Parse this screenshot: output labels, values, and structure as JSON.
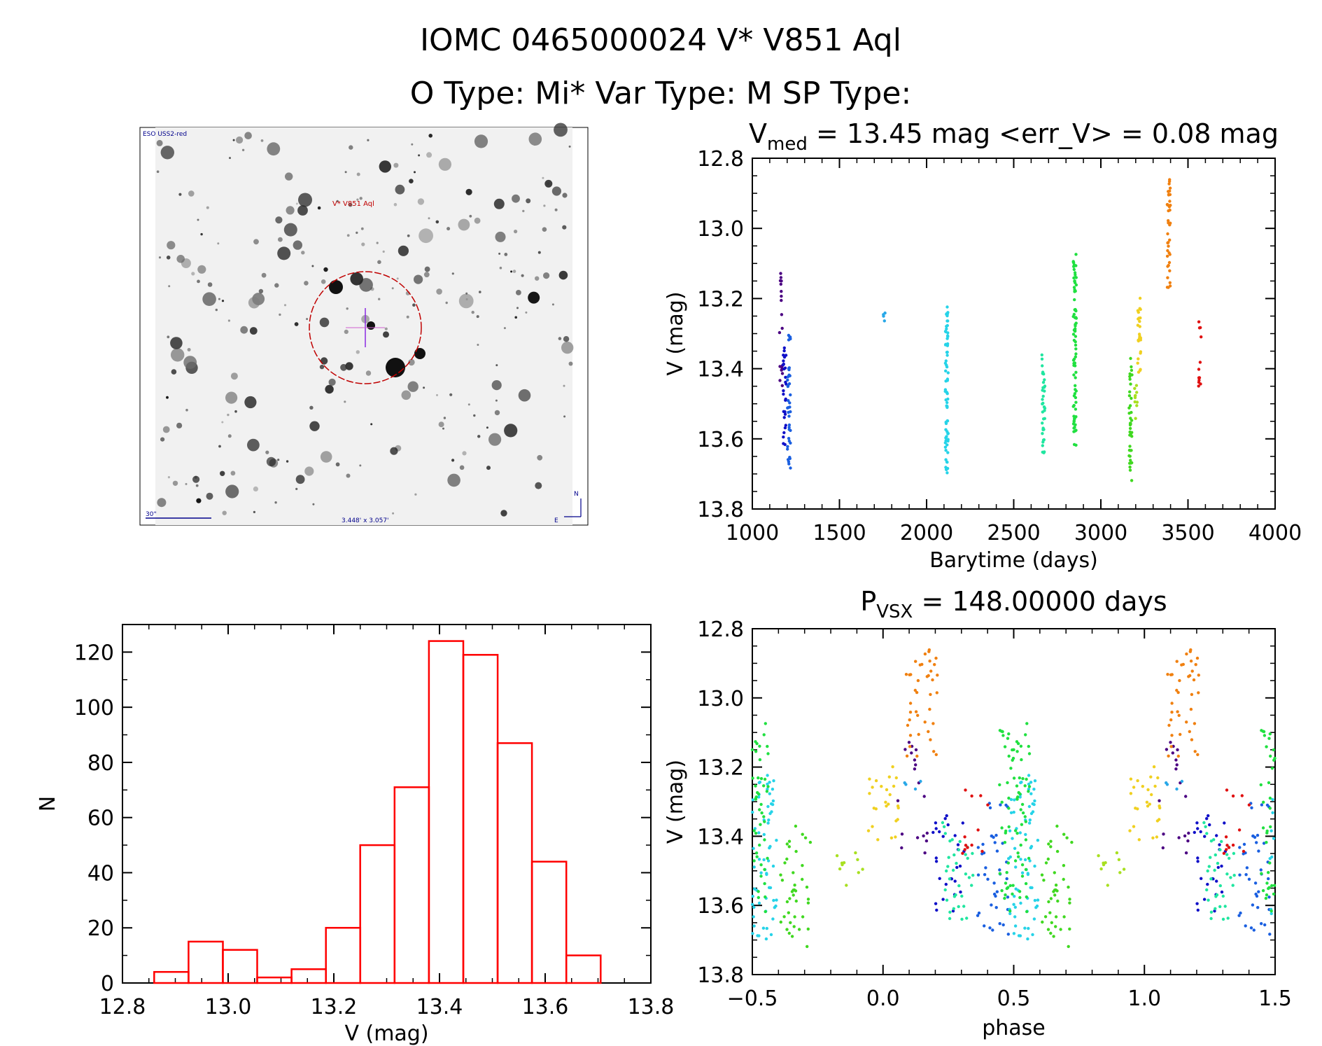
{
  "header": {
    "line1": "IOMC 0465000024    V* V851 Aql",
    "line2": "O Type: Mi*  Var Type: M  SP Type:"
  },
  "sky_image": {
    "survey_label": "ESO USS2-red",
    "object_label": "V* V851 Aql",
    "scale_label": "30\"",
    "size_label": "3.448' x 3.057'",
    "north_label": "N",
    "east_label": "E"
  },
  "chart_data": [
    {
      "id": "lightcurve",
      "type": "scatter",
      "title_main": "V",
      "title_sub": "med",
      "title_rest": " = 13.45 mag <err_V> = 0.08 mag",
      "xlabel": "Barytime (days)",
      "ylabel": "V (mag)",
      "xlim": [
        1000,
        4000
      ],
      "ylim": [
        13.8,
        12.8
      ],
      "y_inverted": true,
      "xticks": [
        "1000",
        "1500",
        "2000",
        "2500",
        "3000",
        "3500",
        "4000"
      ],
      "yticks": [
        "12.8",
        "13.0",
        "13.2",
        "13.4",
        "13.6",
        "13.8"
      ],
      "clusters": [
        {
          "x": 1165,
          "y_min": 13.12,
          "y_max": 13.45,
          "n": 18,
          "color": "#4b0082"
        },
        {
          "x": 1185,
          "y_min": 13.3,
          "y_max": 13.62,
          "n": 28,
          "color": "#1010c8"
        },
        {
          "x": 1210,
          "y_min": 13.3,
          "y_max": 13.69,
          "n": 40,
          "color": "#1a5fe0"
        },
        {
          "x": 1760,
          "y_min": 13.24,
          "y_max": 13.28,
          "n": 4,
          "color": "#29a8e8"
        },
        {
          "x": 2115,
          "y_min": 13.22,
          "y_max": 13.7,
          "n": 70,
          "color": "#26d3e8"
        },
        {
          "x": 2670,
          "y_min": 13.35,
          "y_max": 13.64,
          "n": 35,
          "color": "#20e6a0"
        },
        {
          "x": 2850,
          "y_min": 13.07,
          "y_max": 13.62,
          "n": 80,
          "color": "#20e040"
        },
        {
          "x": 3170,
          "y_min": 13.36,
          "y_max": 13.73,
          "n": 40,
          "color": "#40d820"
        },
        {
          "x": 3200,
          "y_min": 13.4,
          "y_max": 13.55,
          "n": 10,
          "color": "#a8e020"
        },
        {
          "x": 3220,
          "y_min": 13.19,
          "y_max": 13.42,
          "n": 25,
          "color": "#f0d020"
        },
        {
          "x": 3390,
          "y_min": 12.86,
          "y_max": 13.17,
          "n": 40,
          "color": "#f08010"
        },
        {
          "x": 3570,
          "y_min": 13.26,
          "y_max": 13.45,
          "n": 12,
          "color": "#e01010"
        }
      ]
    },
    {
      "id": "histogram",
      "type": "bar",
      "xlabel": "V (mag)",
      "ylabel": "N",
      "xlim": [
        12.8,
        13.8
      ],
      "ylim": [
        0,
        130
      ],
      "xticks": [
        "12.8",
        "13.0",
        "13.2",
        "13.4",
        "13.6",
        "13.8"
      ],
      "yticks": [
        "0",
        "20",
        "40",
        "60",
        "80",
        "100",
        "120"
      ],
      "bin_edges": [
        12.86,
        12.925,
        12.99,
        13.055,
        13.12,
        13.185,
        13.25,
        13.315,
        13.38,
        13.445,
        13.51,
        13.575,
        13.64,
        13.705,
        13.77
      ],
      "values": [
        4,
        15,
        12,
        2,
        5,
        20,
        50,
        71,
        124,
        119,
        87,
        44,
        10,
        0
      ],
      "color": "#ff0000"
    },
    {
      "id": "phased",
      "type": "scatter",
      "title_main": "P",
      "title_sub": "VSX",
      "title_rest": " = 148.00000 days",
      "xlabel": "phase",
      "ylabel": "V (mag)",
      "xlim": [
        -0.5,
        1.5
      ],
      "ylim": [
        13.8,
        12.8
      ],
      "y_inverted": true,
      "xticks": [
        "-0.5",
        "0.0",
        "0.5",
        "1.0",
        "1.5"
      ],
      "yticks": [
        "12.8",
        "13.0",
        "13.2",
        "13.4",
        "13.6",
        "13.8"
      ],
      "period_days": 148.0,
      "phase_zero_barytime": 1000
    }
  ]
}
